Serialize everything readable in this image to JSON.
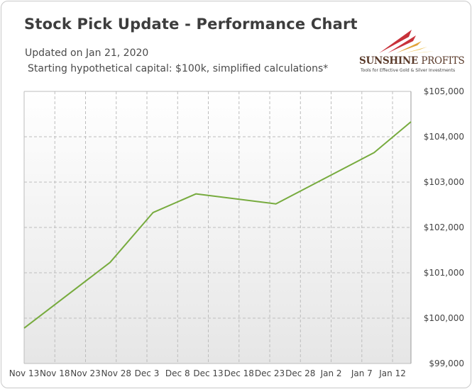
{
  "header": {
    "title": "Stock Pick Update - Performance Chart",
    "updated": "Updated on Jan 21, 2020",
    "note": "Starting hypothetical capital: $100k, simplified calculations*"
  },
  "logo": {
    "name_part1": "SUNSHINE",
    "name_part2": "PROFITS",
    "tagline": "Tools for Effective Gold & Silver Investments"
  },
  "colors": {
    "line": "#77ab3e",
    "plot_bg_top": "#ffffff",
    "plot_bg_bottom": "#e6e6e6",
    "grid": "#bdbdbd"
  },
  "chart_data": {
    "type": "line",
    "title": "Stock Pick Update - Performance Chart",
    "categories": [
      "Nov 13",
      "Nov 18",
      "Nov 23",
      "Nov 28",
      "Dec 3",
      "Dec 8",
      "Dec 13",
      "Dec 18",
      "Dec 23",
      "Dec 28",
      "Jan 2",
      "Jan 7",
      "Jan 12"
    ],
    "x_start": "2019-11-13",
    "x_end": "2020-01-15",
    "ylim": [
      99000,
      105000
    ],
    "yticks": [
      99000,
      100000,
      101000,
      102000,
      103000,
      104000,
      105000
    ],
    "ytick_labels": [
      "$99,000",
      "$100,000",
      "$101,000",
      "$102,000",
      "$103,000",
      "$104,000",
      "$105,000"
    ],
    "grid": true,
    "legend": "none",
    "series": [
      {
        "x": [
          "2019-11-13",
          "2019-11-27",
          "2019-12-04",
          "2019-12-11",
          "2019-12-24",
          "2020-01-09",
          "2020-01-15"
        ],
        "values": [
          99780,
          101230,
          102330,
          102740,
          102520,
          103650,
          104330
        ]
      }
    ]
  }
}
